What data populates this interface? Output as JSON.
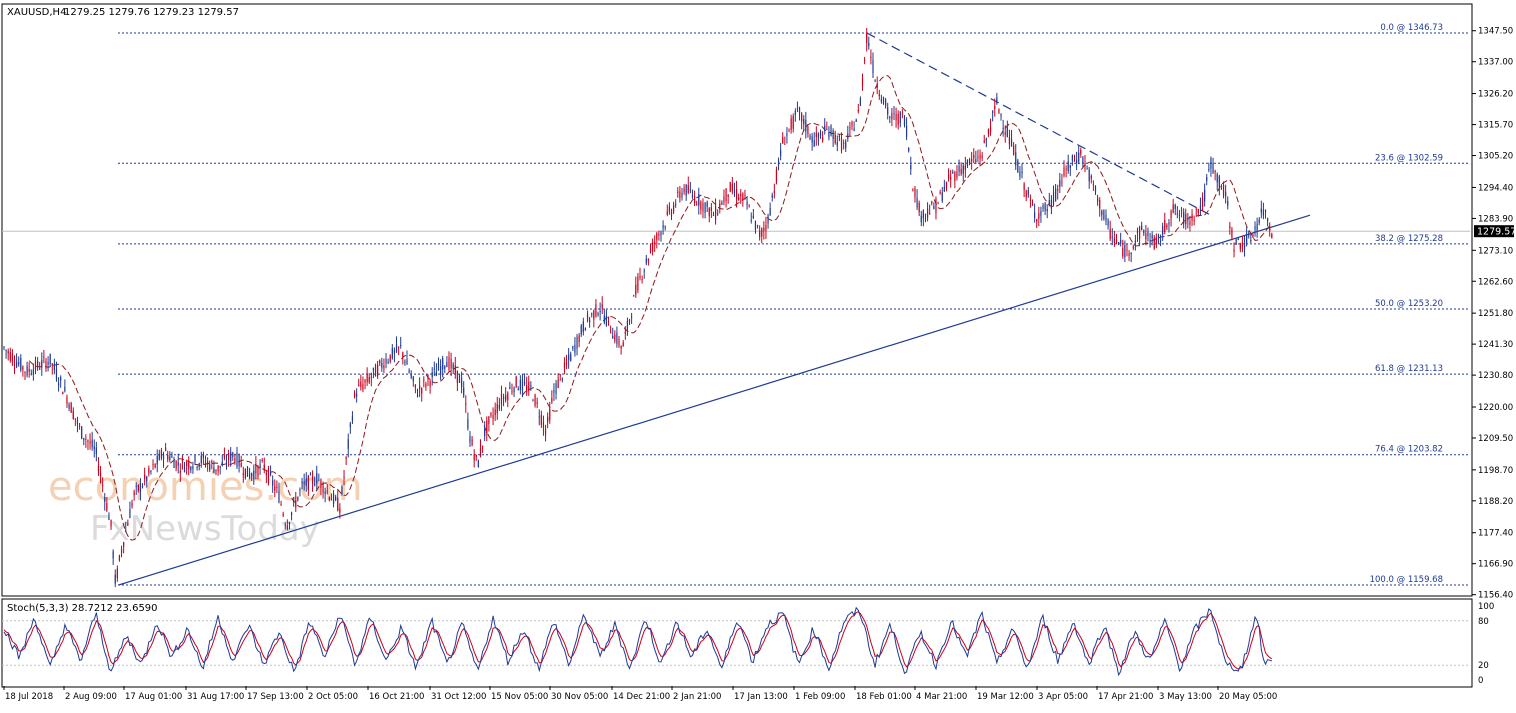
{
  "header": {
    "symbol": "XAUUSD,H4",
    "ohlc": "1279.25 1279.76 1279.23 1279.57"
  },
  "colors": {
    "up_candle": "#1f3a93",
    "down_candle": "#c8001e",
    "grid_line": "#1f3a93",
    "moving_average": "#8b1a1a",
    "trendline": "#1f3a93",
    "price_tag_bg": "#000000",
    "stoch_main": "#1f3a93",
    "stoch_signal": "#c8001e",
    "watermark": "#f3c9a6"
  },
  "chart_data": [
    {
      "type": "candlestick",
      "title": "",
      "current_price": 1279.57,
      "current_price_label": "1279.57",
      "ylim": [
        1156.4,
        1352.0
      ],
      "y_ticks": [
        "1347.50",
        "1337.00",
        "1326.20",
        "1315.70",
        "1305.20",
        "1294.40",
        "1283.90",
        "1273.10",
        "1262.60",
        "1251.80",
        "1241.30",
        "1230.80",
        "1220.00",
        "1209.50",
        "1198.70",
        "1188.20",
        "1177.40",
        "1166.90",
        "1156.40"
      ],
      "x_ticks": [
        "18 Jul 2018",
        "2 Aug 09:00",
        "17 Aug 01:00",
        "31 Aug 17:00",
        "17 Sep 13:00",
        "2 Oct 05:00",
        "16 Oct 21:00",
        "31 Oct 12:00",
        "15 Nov 05:00",
        "30 Nov 05:00",
        "14 Dec 21:00",
        "2 Jan 21:00",
        "17 Jan 13:00",
        "1 Feb 09:00",
        "18 Feb 01:00",
        "4 Mar 21:00",
        "19 Mar 12:00",
        "3 Apr 05:00",
        "17 Apr 21:00",
        "3 May 13:00",
        "20 May 05:00"
      ],
      "price_path": [
        [
          0,
          1240
        ],
        [
          3,
          1232
        ],
        [
          6,
          1236
        ],
        [
          8,
          1225
        ],
        [
          10,
          1212
        ],
        [
          12,
          1205
        ],
        [
          14,
          1180
        ],
        [
          14.6,
          1160
        ],
        [
          15.4,
          1172
        ],
        [
          17,
          1190
        ],
        [
          19,
          1197
        ],
        [
          21,
          1205
        ],
        [
          23,
          1200
        ],
        [
          26,
          1202
        ],
        [
          28,
          1199
        ],
        [
          30,
          1204
        ],
        [
          32,
          1197
        ],
        [
          34,
          1200
        ],
        [
          36,
          1190
        ],
        [
          37,
          1180
        ],
        [
          39,
          1193
        ],
        [
          41,
          1196
        ],
        [
          43,
          1189
        ],
        [
          44,
          1186
        ],
        [
          46,
          1225
        ],
        [
          48,
          1230
        ],
        [
          50,
          1236
        ],
        [
          52,
          1240
        ],
        [
          54,
          1225
        ],
        [
          56,
          1230
        ],
        [
          58,
          1236
        ],
        [
          60,
          1228
        ],
        [
          61,
          1210
        ],
        [
          62,
          1200
        ],
        [
          63,
          1212
        ],
        [
          65,
          1222
        ],
        [
          67,
          1228
        ],
        [
          69,
          1226
        ],
        [
          71,
          1212
        ],
        [
          72,
          1225
        ],
        [
          74,
          1236
        ],
        [
          76,
          1248
        ],
        [
          78,
          1254
        ],
        [
          80,
          1244
        ],
        [
          81,
          1240
        ],
        [
          83,
          1262
        ],
        [
          85,
          1275
        ],
        [
          87,
          1285
        ],
        [
          89,
          1294
        ],
        [
          91,
          1290
        ],
        [
          93,
          1285
        ],
        [
          95,
          1294
        ],
        [
          97,
          1290
        ],
        [
          99,
          1278
        ],
        [
          100,
          1283
        ],
        [
          102,
          1310
        ],
        [
          104,
          1320
        ],
        [
          106,
          1310
        ],
        [
          108,
          1314
        ],
        [
          110,
          1308
        ],
        [
          112,
          1320
        ],
        [
          113,
          1346.7
        ],
        [
          114,
          1332
        ],
        [
          116,
          1318
        ],
        [
          118,
          1318
        ],
        [
          119,
          1296
        ],
        [
          120,
          1285
        ],
        [
          122,
          1288
        ],
        [
          124,
          1298
        ],
        [
          126,
          1302
        ],
        [
          128,
          1305
        ],
        [
          130,
          1323
        ],
        [
          132,
          1308
        ],
        [
          134,
          1292
        ],
        [
          135,
          1285
        ],
        [
          137,
          1288
        ],
        [
          139,
          1300
        ],
        [
          141,
          1306
        ],
        [
          143,
          1292
        ],
        [
          145,
          1278
        ],
        [
          147,
          1272
        ],
        [
          149,
          1280
        ],
        [
          151,
          1275
        ],
        [
          153,
          1287
        ],
        [
          155,
          1283
        ],
        [
          157,
          1289
        ],
        [
          158,
          1303
        ],
        [
          160,
          1291
        ],
        [
          161,
          1275
        ],
        [
          163,
          1276
        ],
        [
          165,
          1287
        ],
        [
          166,
          1279.57
        ]
      ],
      "fib_levels": [
        {
          "label": "0.0 @ 1346.73",
          "value": 1346.73
        },
        {
          "label": "23.6 @ 1302.59",
          "value": 1302.59
        },
        {
          "label": "38.2 @ 1275.28",
          "value": 1275.28
        },
        {
          "label": "50.0 @ 1253.20",
          "value": 1253.2
        },
        {
          "label": "61.8 @ 1231.13",
          "value": 1231.13
        },
        {
          "label": "76.4 @ 1203.82",
          "value": 1203.82
        },
        {
          "label": "100.0 @ 1159.68",
          "value": 1159.68
        }
      ],
      "trendlines": [
        {
          "style": "solid",
          "from": [
            15,
            1159.68
          ],
          "to": [
            171,
            1285
          ]
        },
        {
          "style": "dashed",
          "from": [
            113,
            1346.7
          ],
          "to": [
            158,
            1285
          ]
        }
      ]
    },
    {
      "type": "line",
      "title": "Stoch(5,3,3) 28.7212 23.6590",
      "ylim": [
        0,
        100
      ],
      "y_ticks": [
        "100",
        "80",
        "20",
        "0"
      ],
      "levels": [
        80,
        20
      ],
      "series_main_path": [
        [
          0,
          70
        ],
        [
          2,
          30
        ],
        [
          4,
          85
        ],
        [
          6,
          15
        ],
        [
          8,
          75
        ],
        [
          10,
          25
        ],
        [
          12,
          90
        ],
        [
          14,
          10
        ],
        [
          16,
          60
        ],
        [
          18,
          20
        ],
        [
          20,
          80
        ],
        [
          22,
          30
        ],
        [
          24,
          70
        ],
        [
          26,
          15
        ],
        [
          28,
          85
        ],
        [
          30,
          25
        ],
        [
          32,
          75
        ],
        [
          34,
          20
        ],
        [
          36,
          65
        ],
        [
          38,
          10
        ],
        [
          40,
          80
        ],
        [
          42,
          30
        ],
        [
          44,
          90
        ],
        [
          46,
          20
        ],
        [
          48,
          85
        ],
        [
          50,
          25
        ],
        [
          52,
          70
        ],
        [
          54,
          15
        ],
        [
          56,
          80
        ],
        [
          58,
          20
        ],
        [
          60,
          75
        ],
        [
          62,
          10
        ],
        [
          64,
          85
        ],
        [
          66,
          25
        ],
        [
          68,
          70
        ],
        [
          70,
          15
        ],
        [
          72,
          80
        ],
        [
          74,
          20
        ],
        [
          76,
          90
        ],
        [
          78,
          30
        ],
        [
          80,
          75
        ],
        [
          82,
          15
        ],
        [
          84,
          85
        ],
        [
          86,
          20
        ],
        [
          88,
          80
        ],
        [
          90,
          30
        ],
        [
          92,
          70
        ],
        [
          94,
          15
        ],
        [
          96,
          85
        ],
        [
          98,
          25
        ],
        [
          100,
          75
        ],
        [
          102,
          90
        ],
        [
          104,
          20
        ],
        [
          106,
          70
        ],
        [
          108,
          15
        ],
        [
          110,
          80
        ],
        [
          112,
          95
        ],
        [
          114,
          20
        ],
        [
          116,
          75
        ],
        [
          118,
          10
        ],
        [
          120,
          65
        ],
        [
          122,
          20
        ],
        [
          124,
          80
        ],
        [
          126,
          30
        ],
        [
          128,
          90
        ],
        [
          130,
          20
        ],
        [
          132,
          70
        ],
        [
          134,
          15
        ],
        [
          136,
          85
        ],
        [
          138,
          25
        ],
        [
          140,
          80
        ],
        [
          142,
          20
        ],
        [
          144,
          75
        ],
        [
          146,
          10
        ],
        [
          148,
          65
        ],
        [
          150,
          25
        ],
        [
          152,
          80
        ],
        [
          154,
          15
        ],
        [
          156,
          70
        ],
        [
          158,
          95
        ],
        [
          160,
          20
        ],
        [
          162,
          15
        ],
        [
          164,
          90
        ],
        [
          165,
          20
        ],
        [
          166,
          28.7
        ]
      ]
    }
  ],
  "watermark": {
    "line1": "economies.com",
    "line2": "FxNewsToday"
  }
}
